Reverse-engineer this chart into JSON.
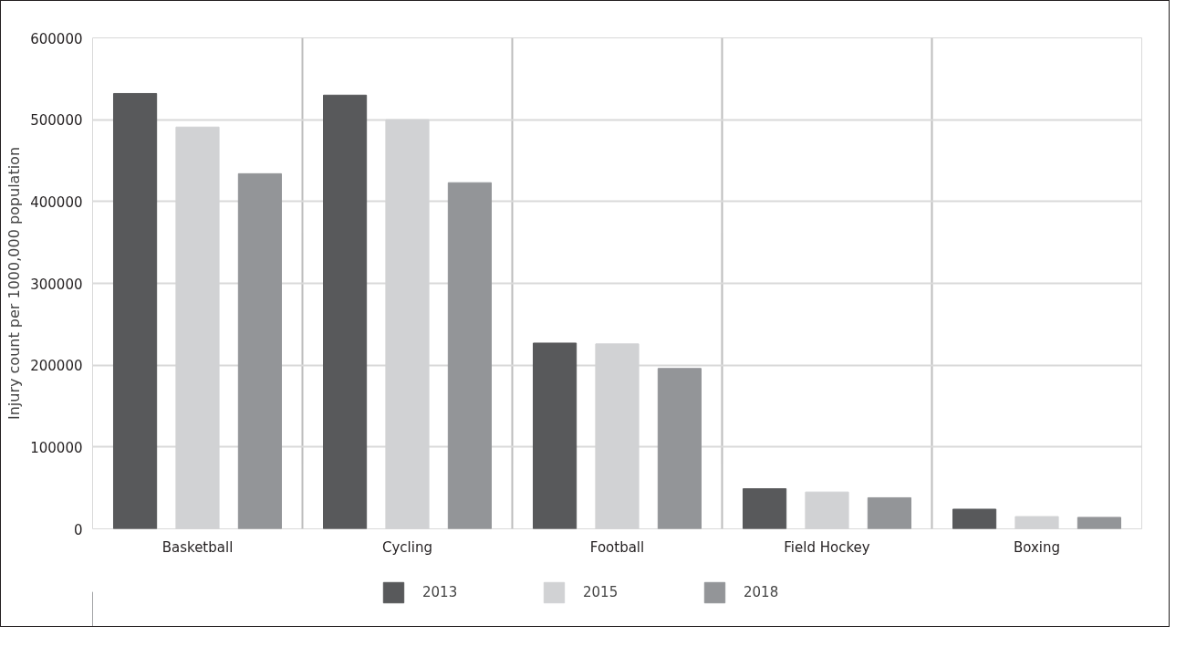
{
  "chart_data": {
    "type": "bar",
    "ylabel": "Injury count per 1000,000 population",
    "categories": [
      "Basketball",
      "Cycling",
      "Football",
      "Field Hockey",
      "Boxing"
    ],
    "series": [
      {
        "name": "2013",
        "color": "#58595b",
        "values": [
          532000,
          530000,
          227000,
          49000,
          24000
        ]
      },
      {
        "name": "2015",
        "color": "#d1d2d4",
        "values": [
          491000,
          500000,
          226000,
          45000,
          15000
        ]
      },
      {
        "name": "2018",
        "color": "#939598",
        "values": [
          434000,
          423000,
          196000,
          38000,
          14000
        ]
      }
    ],
    "ylim": [
      0,
      600000
    ],
    "yticks": [
      0,
      100000,
      200000,
      300000,
      400000,
      500000,
      600000
    ],
    "grid": true,
    "legend": "bottom"
  }
}
